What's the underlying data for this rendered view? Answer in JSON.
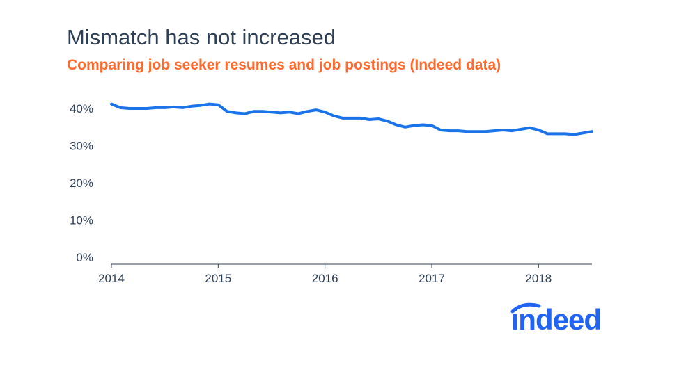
{
  "title": "Mismatch has not increased",
  "subtitle": "Comparing job seeker resumes and job postings (Indeed data)",
  "logo_text": "indeed",
  "colors": {
    "title": "#2d3f55",
    "subtitle": "#ff6a2c",
    "line": "#1a73e8",
    "logo": "#2164f3",
    "axis": "#2d3f55"
  },
  "chart_data": {
    "type": "line",
    "title": "Mismatch has not increased",
    "subtitle": "Comparing job seeker resumes and job postings (Indeed data)",
    "xlabel": "",
    "ylabel": "",
    "x_ticks": [
      "2014",
      "2015",
      "2016",
      "2017",
      "2018"
    ],
    "x_tick_values": [
      2014,
      2015,
      2016,
      2017,
      2018
    ],
    "y_ticks": [
      "0%",
      "10%",
      "20%",
      "30%",
      "40%"
    ],
    "y_tick_values": [
      0,
      10,
      20,
      30,
      40
    ],
    "xlim": [
      2014,
      2018.5
    ],
    "ylim": [
      0,
      40
    ],
    "grid": false,
    "legend": "none",
    "series": [
      {
        "x": [
          2014.0,
          2014.083,
          2014.167,
          2014.25,
          2014.333,
          2014.417,
          2014.5,
          2014.583,
          2014.667,
          2014.75,
          2014.833,
          2014.917,
          2015.0,
          2015.083,
          2015.167,
          2015.25,
          2015.333,
          2015.417,
          2015.5,
          2015.583,
          2015.667,
          2015.75,
          2015.833,
          2015.917,
          2016.0,
          2016.083,
          2016.167,
          2016.25,
          2016.333,
          2016.417,
          2016.5,
          2016.583,
          2016.667,
          2016.75,
          2016.833,
          2016.917,
          2017.0,
          2017.083,
          2017.167,
          2017.25,
          2017.333,
          2017.417,
          2017.5,
          2017.583,
          2017.667,
          2017.75,
          2017.833,
          2017.917,
          2018.0,
          2018.083,
          2018.167,
          2018.25,
          2018.333,
          2018.417,
          2018.5
        ],
        "values": [
          41.2,
          40.2,
          40.0,
          40.0,
          40.0,
          40.2,
          40.2,
          40.4,
          40.2,
          40.6,
          40.8,
          41.2,
          41.0,
          39.2,
          38.8,
          38.6,
          39.2,
          39.2,
          39.0,
          38.8,
          39.0,
          38.6,
          39.2,
          39.6,
          39.0,
          38.0,
          37.4,
          37.4,
          37.4,
          37.0,
          37.2,
          36.6,
          35.6,
          35.0,
          35.4,
          35.6,
          35.4,
          34.2,
          34.0,
          34.0,
          33.8,
          33.8,
          33.8,
          34.0,
          34.2,
          34.0,
          34.4,
          34.8,
          34.2,
          33.2,
          33.2,
          33.2,
          33.0,
          33.4,
          33.8
        ]
      }
    ]
  }
}
